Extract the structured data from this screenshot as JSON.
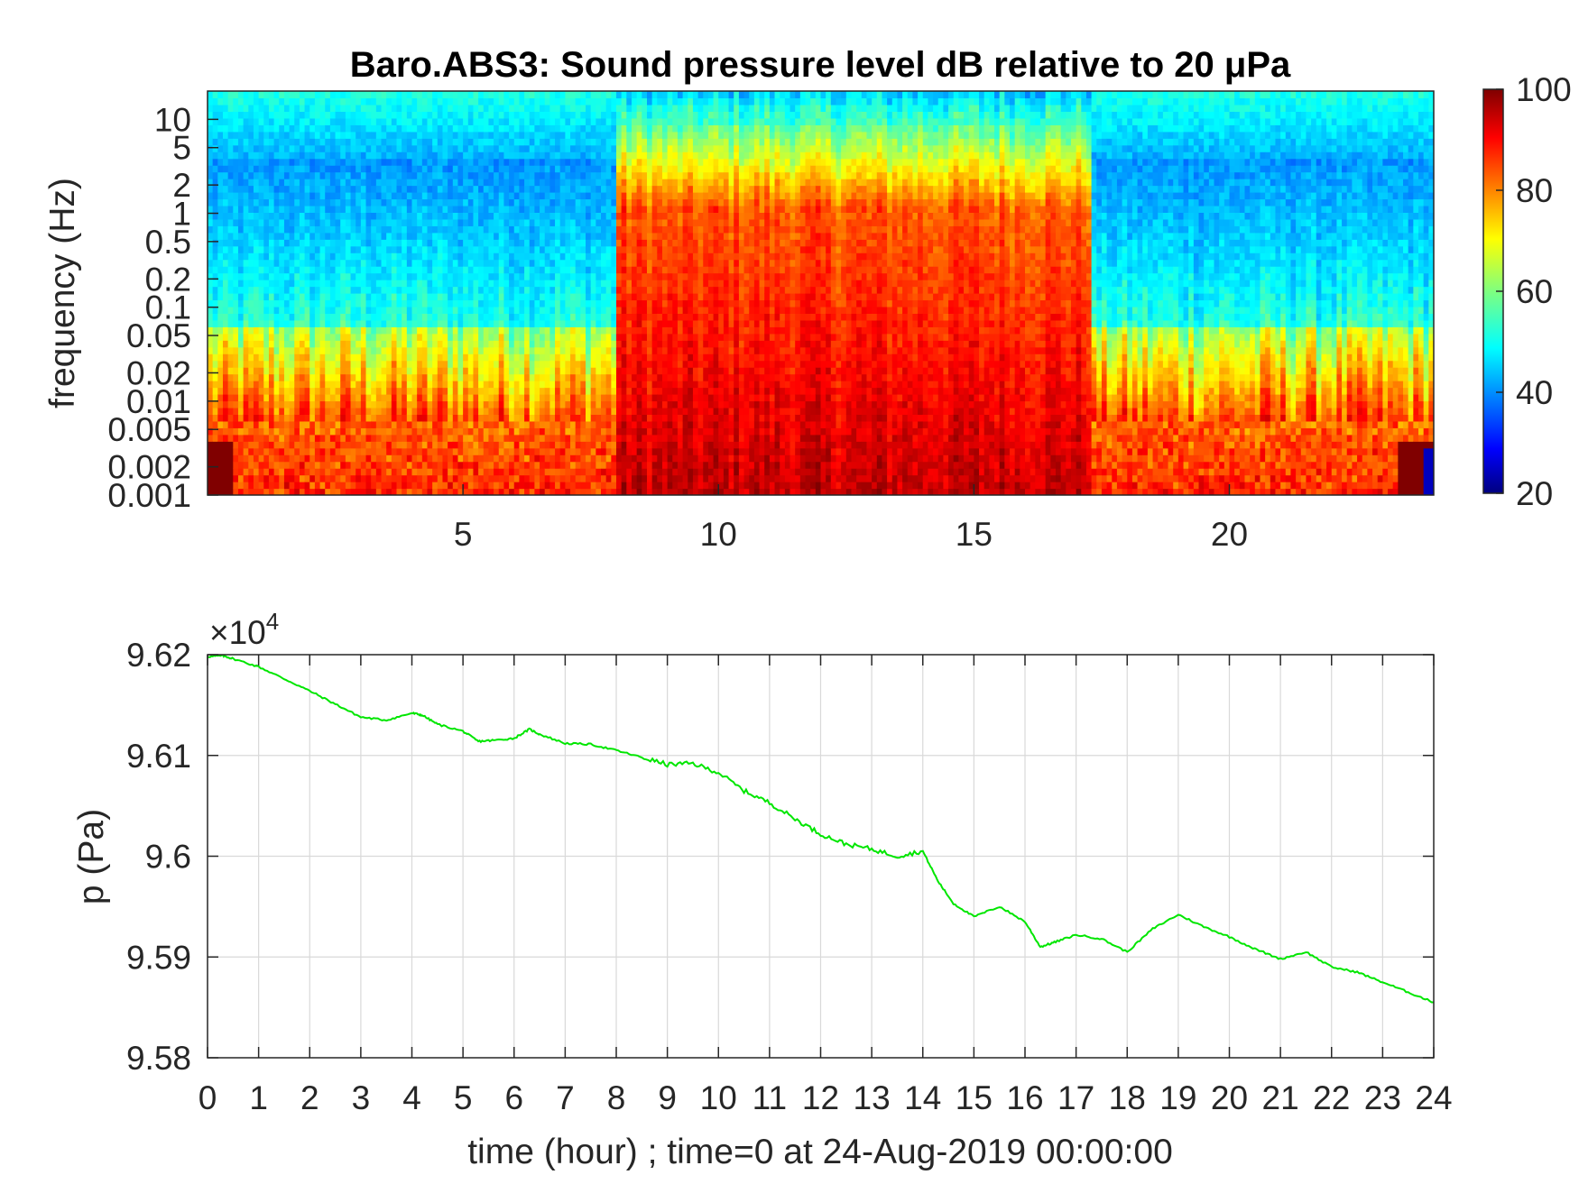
{
  "chart_data": [
    {
      "type": "heatmap",
      "title": "Baro.ABS3: Sound pressure level dB relative to 20 μPa",
      "ylabel": "frequency (Hz)",
      "xlabel": "",
      "y_scale": "log",
      "x_range": [
        0,
        24
      ],
      "y_range": [
        0.001,
        20
      ],
      "x_ticks": [
        "5",
        "10",
        "15",
        "20"
      ],
      "y_ticks": [
        "10",
        "5",
        "2",
        "1",
        "0.5",
        "0.2",
        "0.1",
        "0.05",
        "0.02",
        "0.01",
        "0.005",
        "0.002",
        "0.001"
      ],
      "colorbar": {
        "range": [
          20,
          100
        ],
        "ticks": [
          "100",
          "80",
          "60",
          "40",
          "20"
        ],
        "colormap": "jet"
      },
      "loud_period_hours": [
        8,
        17.3
      ]
    },
    {
      "type": "line",
      "xlabel": "time (hour) ; time=0 at 24-Aug-2019 00:00:00",
      "ylabel": "p (Pa)",
      "exponent_label": "×10",
      "exponent_power": "4",
      "x_range": [
        0,
        24
      ],
      "y_range": [
        9.58,
        9.62
      ],
      "grid": true,
      "line_color": "#00e600",
      "x_ticks": [
        "0",
        "1",
        "2",
        "3",
        "4",
        "5",
        "6",
        "7",
        "8",
        "9",
        "10",
        "11",
        "12",
        "13",
        "14",
        "15",
        "16",
        "17",
        "18",
        "19",
        "20",
        "21",
        "22",
        "23",
        "24"
      ],
      "y_ticks": [
        "9.62",
        "9.61",
        "9.6",
        "9.59",
        "9.58"
      ],
      "series": [
        {
          "x": [
            0,
            0.3,
            0.5,
            1,
            1.5,
            2,
            2.5,
            3,
            3.5,
            4,
            4.2,
            4.5,
            5,
            5.3,
            5.6,
            6,
            6.3,
            6.5,
            7,
            7.5,
            8,
            8.5,
            9,
            9.5,
            10,
            10.5,
            11,
            11.5,
            12,
            12.5,
            13,
            13.5,
            14,
            14.3,
            14.6,
            15,
            15.5,
            16,
            16.3,
            16.6,
            17,
            17.5,
            18,
            18.5,
            19,
            19.5,
            20,
            20.5,
            21,
            21.5,
            22,
            22.5,
            23,
            23.5,
            24
          ],
          "y": [
            9.6198,
            9.6199,
            9.6196,
            9.6188,
            9.6176,
            9.6164,
            9.6151,
            9.6138,
            9.6135,
            9.6142,
            9.614,
            9.6131,
            9.6124,
            9.6114,
            9.6115,
            9.6117,
            9.6126,
            9.6121,
            9.6112,
            9.6111,
            9.6105,
            9.6098,
            9.6091,
            9.6092,
            9.6083,
            9.6065,
            9.6053,
            9.6037,
            9.6022,
            9.6012,
            9.6007,
            9.6,
            9.6005,
            9.5975,
            9.5953,
            9.594,
            9.595,
            9.5935,
            9.591,
            9.5915,
            9.5922,
            9.5918,
            9.5905,
            9.5928,
            9.5942,
            9.593,
            9.592,
            9.5908,
            9.5898,
            9.5905,
            9.589,
            9.5885,
            9.5875,
            9.5865,
            9.5855
          ]
        }
      ]
    }
  ]
}
